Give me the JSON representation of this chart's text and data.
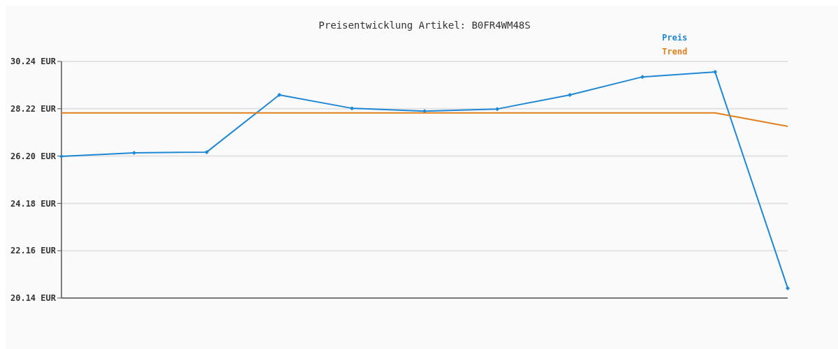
{
  "chart_data": {
    "type": "line",
    "title": "Preisentwicklung Artikel: B0FR4WM48S",
    "categories": [
      null,
      null,
      null,
      null,
      null,
      null,
      null,
      null,
      null,
      null,
      null
    ],
    "series": [
      {
        "name": "Preis",
        "color": "#1e88d4",
        "marker": "diamond",
        "values": [
          26.19,
          26.34,
          26.37,
          28.81,
          28.24,
          28.12,
          28.21,
          28.81,
          29.58,
          29.79,
          20.56
        ]
      },
      {
        "name": "Trend",
        "color": "#e0801c",
        "marker": "none",
        "values": [
          28.04,
          28.04,
          28.04,
          28.04,
          28.04,
          28.04,
          28.04,
          28.04,
          28.04,
          28.04,
          27.47
        ]
      }
    ],
    "ylim": [
      20.14,
      30.24
    ],
    "yticks": [
      {
        "value": 20.14,
        "label": "20.14 EUR"
      },
      {
        "value": 22.16,
        "label": "22.16 EUR"
      },
      {
        "value": 24.18,
        "label": "24.18 EUR"
      },
      {
        "value": 26.2,
        "label": "26.20 EUR"
      },
      {
        "value": 28.22,
        "label": "28.22 EUR"
      },
      {
        "value": 30.24,
        "label": "30.24 EUR"
      }
    ],
    "grid": "y",
    "legend": "top right"
  }
}
